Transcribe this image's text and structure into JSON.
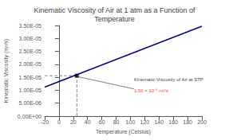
{
  "chart_data": {
    "type": "line",
    "title": "Kinematic Viscosity of Air at 1 atm as a Function of\nTemperature",
    "x_label": "Temperature (Celsius)",
    "y_label": "Kinematic Viscosity (m²/s)",
    "x": [
      -20,
      200
    ],
    "values": [
      1.12e-05,
      3.47e-05
    ],
    "color": "#00008B",
    "xlim": [
      -20,
      200
    ],
    "ylim": [
      0,
      3.5e-05
    ],
    "xticks": [
      -20,
      0,
      20,
      40,
      60,
      80,
      100,
      120,
      140,
      160,
      180,
      200
    ],
    "yticks": [
      {
        "value": 0,
        "label": "0.00E+00"
      },
      {
        "value": 5e-06,
        "label": "5.00E-06"
      },
      {
        "value": 1e-05,
        "label": "1.00E-05"
      },
      {
        "value": 1.5e-05,
        "label": "1.50E-05"
      },
      {
        "value": 2e-05,
        "label": "2.00E-05"
      },
      {
        "value": 2.5e-05,
        "label": "2.50E-05"
      },
      {
        "value": 3e-05,
        "label": "3.00E-05"
      },
      {
        "value": 3.5e-05,
        "label": "3.50E-05"
      }
    ],
    "grid": false,
    "points": [
      {
        "x": 25,
        "y": 1.56e-05,
        "color": "#000000",
        "marker": "square",
        "line_style": "dashed"
      }
    ],
    "lines": [
      {
        "x": [
          105,
          27
        ],
        "y": [
          1.05e-05,
          1.52e-05
        ],
        "color": "#808080"
      }
    ],
    "annotations": [
      {
        "text": "Kinematic Viscosity of Air at STP",
        "x": 105,
        "y": 1.33e-05,
        "color": "#000000"
      },
      {
        "text": "1.56 × 10⁻⁵ m²/s",
        "x": 105,
        "y": 1.07e-05,
        "color": "#ff0000"
      }
    ]
  }
}
